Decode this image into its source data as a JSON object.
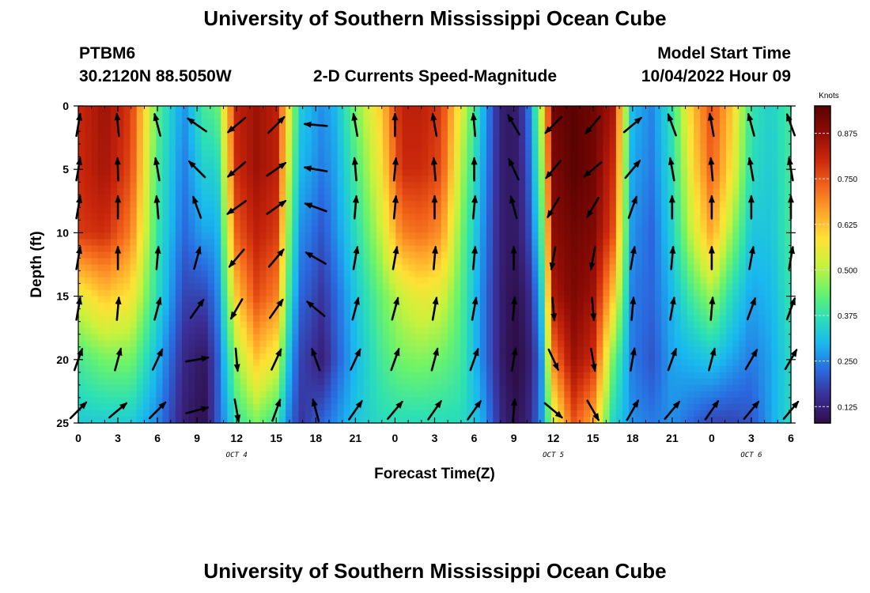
{
  "page": {
    "title": "University of Southern Mississippi Ocean Cube",
    "footer_title": "University of Southern Mississippi Ocean Cube",
    "station": "PTBM6",
    "coords": "30.2120N  88.5050W",
    "subtitle": "2-D Currents Speed-Magnitude",
    "model_start_label": "Model Start Time",
    "model_start_value": "10/04/2022 Hour 09"
  },
  "chart_data": {
    "type": "heatmap",
    "title": "2-D Currents Speed-Magnitude",
    "xlabel": "Forecast Time(Z)",
    "ylabel": "Depth (ft)",
    "x_range_hours": [
      0,
      54
    ],
    "ylim": [
      0,
      25
    ],
    "y_inverted": true,
    "x_ticks": [
      "0",
      "3",
      "6",
      "9",
      "12",
      "15",
      "18",
      "21",
      "0",
      "3",
      "6",
      "9",
      "12",
      "15",
      "18",
      "21",
      "0",
      "3",
      "6"
    ],
    "y_ticks": [
      "0",
      "5",
      "10",
      "15",
      "20",
      "25"
    ],
    "date_labels": [
      {
        "text": "OCT 4",
        "hour": 12
      },
      {
        "text": "OCT 5",
        "hour": 36
      },
      {
        "text": "OCT 6",
        "hour": 51
      }
    ],
    "colorbar": {
      "title": "Knots",
      "min": 0.08,
      "max": 0.95,
      "ticks": [
        "0.875",
        "0.750",
        "0.625",
        "0.500",
        "0.375",
        "0.250",
        "0.125"
      ],
      "colors": [
        "#2e0f4a",
        "#3b2d94",
        "#2a6ae0",
        "#19b8f0",
        "#2de0b4",
        "#6cf36a",
        "#c9f23c",
        "#ffe135",
        "#ffa42b",
        "#f2621a",
        "#c9260b",
        "#8f0c05",
        "#5a0202"
      ]
    },
    "speed_profiles": {
      "hours": [
        0,
        2,
        4,
        6,
        8,
        9.5,
        10.5,
        12,
        13.5,
        15,
        16,
        16.8,
        17.5,
        18.5,
        19.5,
        21,
        23,
        24.5,
        26,
        27.5,
        29,
        30.5,
        32,
        33,
        34,
        35,
        36,
        37.5,
        39,
        40.5,
        42,
        43.5,
        45,
        46.5,
        48,
        49.5,
        51,
        52.5,
        54
      ],
      "depths_ft": [
        0,
        5,
        10,
        15,
        20,
        25
      ],
      "speed_knots": [
        [
          0.8,
          0.8,
          0.78,
          0.55,
          0.4,
          0.33
        ],
        [
          0.86,
          0.85,
          0.8,
          0.62,
          0.45,
          0.33
        ],
        [
          0.78,
          0.76,
          0.7,
          0.58,
          0.45,
          0.33
        ],
        [
          0.42,
          0.4,
          0.38,
          0.36,
          0.3,
          0.25
        ],
        [
          0.26,
          0.24,
          0.22,
          0.18,
          0.14,
          0.12
        ],
        [
          0.4,
          0.34,
          0.28,
          0.18,
          0.1,
          0.08
        ],
        [
          0.42,
          0.34,
          0.28,
          0.24,
          0.2,
          0.2
        ],
        [
          0.82,
          0.8,
          0.74,
          0.62,
          0.48,
          0.38
        ],
        [
          0.86,
          0.86,
          0.82,
          0.76,
          0.62,
          0.45
        ],
        [
          0.82,
          0.82,
          0.78,
          0.7,
          0.55,
          0.38
        ],
        [
          0.55,
          0.5,
          0.44,
          0.38,
          0.3,
          0.24
        ],
        [
          0.33,
          0.3,
          0.26,
          0.22,
          0.18,
          0.16
        ],
        [
          0.3,
          0.28,
          0.24,
          0.2,
          0.16,
          0.18
        ],
        [
          0.26,
          0.24,
          0.2,
          0.16,
          0.12,
          0.22
        ],
        [
          0.3,
          0.28,
          0.26,
          0.22,
          0.2,
          0.26
        ],
        [
          0.45,
          0.4,
          0.36,
          0.32,
          0.3,
          0.32
        ],
        [
          0.62,
          0.58,
          0.52,
          0.44,
          0.4,
          0.36
        ],
        [
          0.82,
          0.8,
          0.7,
          0.52,
          0.45,
          0.36
        ],
        [
          0.82,
          0.8,
          0.72,
          0.56,
          0.46,
          0.36
        ],
        [
          0.78,
          0.76,
          0.68,
          0.54,
          0.44,
          0.36
        ],
        [
          0.55,
          0.5,
          0.45,
          0.42,
          0.4,
          0.36
        ],
        [
          0.32,
          0.3,
          0.28,
          0.26,
          0.26,
          0.3
        ],
        [
          0.12,
          0.12,
          0.12,
          0.12,
          0.12,
          0.14
        ],
        [
          0.1,
          0.1,
          0.1,
          0.08,
          0.07,
          0.09
        ],
        [
          0.2,
          0.18,
          0.16,
          0.12,
          0.1,
          0.12
        ],
        [
          0.48,
          0.42,
          0.36,
          0.28,
          0.22,
          0.24
        ],
        [
          0.92,
          0.9,
          0.88,
          0.84,
          0.7,
          0.52
        ],
        [
          0.95,
          0.95,
          0.92,
          0.9,
          0.86,
          0.75
        ],
        [
          0.92,
          0.92,
          0.9,
          0.86,
          0.8,
          0.65
        ],
        [
          0.85,
          0.8,
          0.76,
          0.62,
          0.45,
          0.35
        ],
        [
          0.3,
          0.28,
          0.26,
          0.24,
          0.24,
          0.26
        ],
        [
          0.25,
          0.24,
          0.22,
          0.22,
          0.2,
          0.24
        ],
        [
          0.38,
          0.36,
          0.34,
          0.3,
          0.28,
          0.26
        ],
        [
          0.62,
          0.58,
          0.52,
          0.4,
          0.3,
          0.22
        ],
        [
          0.76,
          0.74,
          0.66,
          0.48,
          0.32,
          0.18
        ],
        [
          0.62,
          0.58,
          0.48,
          0.36,
          0.28,
          0.18
        ],
        [
          0.38,
          0.36,
          0.32,
          0.28,
          0.24,
          0.2
        ],
        [
          0.34,
          0.33,
          0.32,
          0.3,
          0.28,
          0.28
        ],
        [
          0.4,
          0.4,
          0.4,
          0.38,
          0.36,
          0.36
        ]
      ]
    },
    "vectors": {
      "note": "direction in degrees from north (0 = up, 90 = right), per column of arrows",
      "hours": [
        0,
        3,
        6,
        9,
        12,
        15,
        18,
        21,
        24,
        27,
        30,
        33,
        36,
        39,
        42,
        45,
        48,
        51,
        54
      ],
      "depths_ft": [
        1.5,
        5,
        8,
        12,
        16,
        20,
        24
      ],
      "direction_deg": [
        [
          10,
          10,
          10,
          10,
          10,
          20,
          45
        ],
        [
          -5,
          -2,
          0,
          0,
          5,
          15,
          50
        ],
        [
          -15,
          -10,
          -5,
          5,
          15,
          25,
          45
        ],
        [
          -55,
          -45,
          -20,
          15,
          35,
          80,
          75
        ],
        [
          -130,
          -130,
          -125,
          -140,
          -150,
          175,
          170
        ],
        [
          45,
          55,
          55,
          40,
          35,
          25,
          20
        ],
        [
          -85,
          -80,
          -70,
          -60,
          -50,
          -20,
          -15
        ],
        [
          -10,
          -5,
          5,
          10,
          15,
          25,
          35
        ],
        [
          0,
          5,
          5,
          10,
          15,
          20,
          40
        ],
        [
          -10,
          -5,
          0,
          5,
          10,
          15,
          35
        ],
        [
          -5,
          0,
          5,
          5,
          10,
          20,
          35
        ],
        [
          -30,
          -25,
          -15,
          0,
          5,
          10,
          5
        ],
        [
          -135,
          -140,
          -150,
          -170,
          175,
          155,
          130
        ],
        [
          -140,
          -130,
          -150,
          -170,
          175,
          170,
          150
        ],
        [
          50,
          40,
          20,
          10,
          5,
          10,
          30
        ],
        [
          -20,
          -10,
          0,
          5,
          10,
          20,
          40
        ],
        [
          -10,
          -5,
          0,
          0,
          5,
          15,
          35
        ],
        [
          -15,
          -10,
          0,
          10,
          20,
          30,
          40
        ],
        [
          -20,
          -10,
          0,
          10,
          20,
          30,
          40
        ]
      ]
    }
  }
}
